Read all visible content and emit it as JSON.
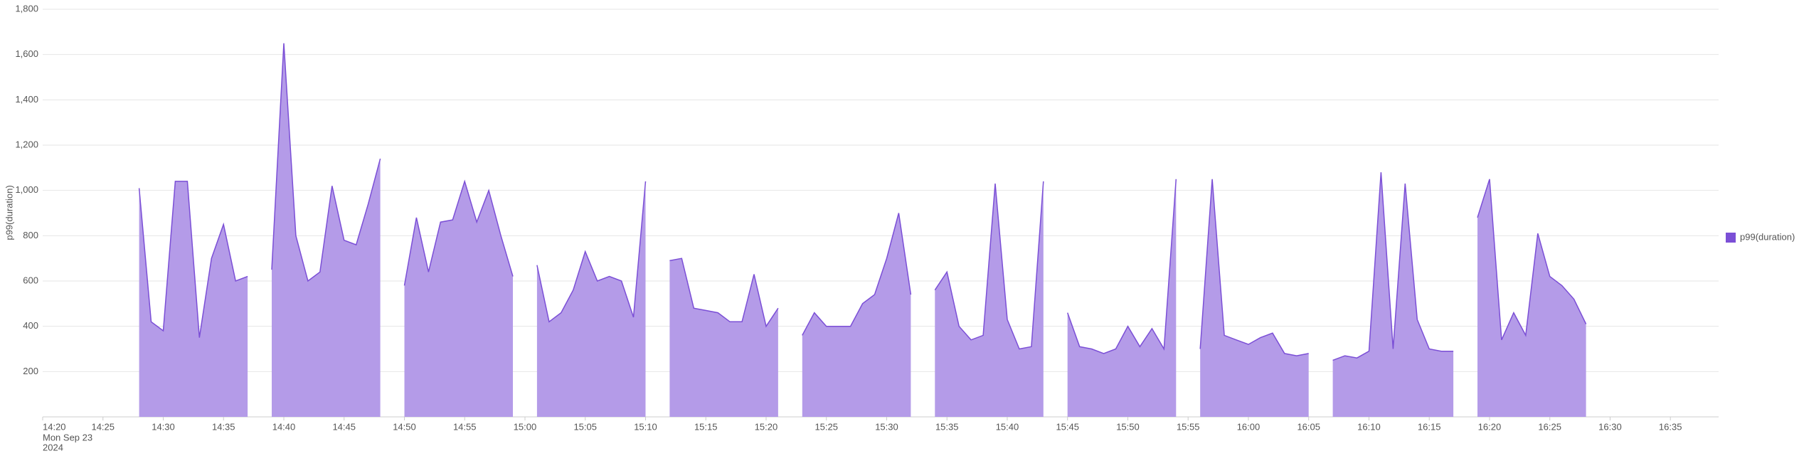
{
  "chart_data": {
    "type": "line",
    "ylabel": "p99(duration)",
    "x_start_date": [
      "Mon Sep 23",
      "2024"
    ],
    "xlim": [
      "14:20",
      "16:39"
    ],
    "xticks": [
      "14:20",
      "14:25",
      "14:30",
      "14:35",
      "14:40",
      "14:45",
      "14:50",
      "14:55",
      "15:00",
      "15:05",
      "15:10",
      "15:15",
      "15:20",
      "15:25",
      "15:30",
      "15:35",
      "15:40",
      "15:45",
      "15:50",
      "15:55",
      "16:00",
      "16:05",
      "16:10",
      "16:15",
      "16:20",
      "16:25",
      "16:30",
      "16:35"
    ],
    "ylim": [
      0,
      1800
    ],
    "yticks": [
      200,
      400,
      600,
      800,
      {
        "value": 1000,
        "label": "1,000"
      },
      {
        "value": 1200,
        "label": "1,200"
      },
      {
        "value": 1400,
        "label": "1,400"
      },
      {
        "value": 1600,
        "label": "1,600"
      },
      {
        "value": 1800,
        "label": "1,800"
      }
    ],
    "grid": true,
    "legend": "right",
    "x": [
      "14:28",
      "14:29",
      "14:30",
      "14:31",
      "14:32",
      "14:33",
      "14:34",
      "14:35",
      "14:36",
      "14:37",
      "14:38",
      "14:39",
      "14:40",
      "14:41",
      "14:42",
      "14:43",
      "14:44",
      "14:45",
      "14:46",
      "14:47",
      "14:48",
      "14:49",
      "14:50",
      "14:51",
      "14:52",
      "14:53",
      "14:54",
      "14:55",
      "14:56",
      "14:57",
      "14:58",
      "14:59",
      "15:00",
      "15:01",
      "15:02",
      "15:03",
      "15:04",
      "15:05",
      "15:06",
      "15:07",
      "15:08",
      "15:09",
      "15:10",
      "15:11",
      "15:12",
      "15:13",
      "15:14",
      "15:15",
      "15:16",
      "15:17",
      "15:18",
      "15:19",
      "15:20",
      "15:21",
      "15:22",
      "15:23",
      "15:24",
      "15:25",
      "15:26",
      "15:27",
      "15:28",
      "15:29",
      "15:30",
      "15:31",
      "15:32",
      "15:33",
      "15:34",
      "15:35",
      "15:36",
      "15:37",
      "15:38",
      "15:39",
      "15:40",
      "15:41",
      "15:42",
      "15:43",
      "15:44",
      "15:45",
      "15:46",
      "15:47",
      "15:48",
      "15:49",
      "15:50",
      "15:51",
      "15:52",
      "15:53",
      "15:54",
      "15:55",
      "15:56",
      "15:57",
      "15:58",
      "15:59",
      "16:00",
      "16:01",
      "16:02",
      "16:03",
      "16:04",
      "16:05",
      "16:06",
      "16:07",
      "16:08",
      "16:09",
      "16:10",
      "16:11",
      "16:12",
      "16:13",
      "16:14",
      "16:15",
      "16:16",
      "16:17",
      "16:18",
      "16:19",
      "16:20",
      "16:21",
      "16:22",
      "16:23",
      "16:24",
      "16:25",
      "16:26",
      "16:27",
      "16:28"
    ],
    "series": [
      {
        "name": "p99(duration)",
        "color": "#7b4fd6",
        "fill": "#b49be8",
        "values": [
          1010,
          420,
          380,
          1040,
          1040,
          350,
          700,
          850,
          600,
          620,
          null,
          650,
          1650,
          800,
          600,
          640,
          1020,
          780,
          760,
          940,
          1140,
          null,
          580,
          880,
          640,
          860,
          870,
          1040,
          860,
          1000,
          800,
          620,
          null,
          670,
          420,
          460,
          560,
          730,
          600,
          620,
          600,
          440,
          1040,
          null,
          690,
          700,
          480,
          470,
          460,
          420,
          420,
          630,
          400,
          480,
          null,
          360,
          460,
          400,
          400,
          400,
          500,
          540,
          700,
          900,
          540,
          null,
          560,
          640,
          400,
          340,
          360,
          1030,
          430,
          300,
          310,
          1040,
          null,
          460,
          310,
          300,
          280,
          300,
          400,
          310,
          390,
          300,
          1050,
          null,
          300,
          1050,
          360,
          340,
          320,
          350,
          370,
          280,
          270,
          280,
          null,
          250,
          270,
          260,
          290,
          1080,
          300,
          1030,
          430,
          300,
          290,
          290,
          null,
          880,
          1050,
          340,
          460,
          360,
          810,
          620,
          580,
          520,
          410
        ]
      }
    ]
  }
}
